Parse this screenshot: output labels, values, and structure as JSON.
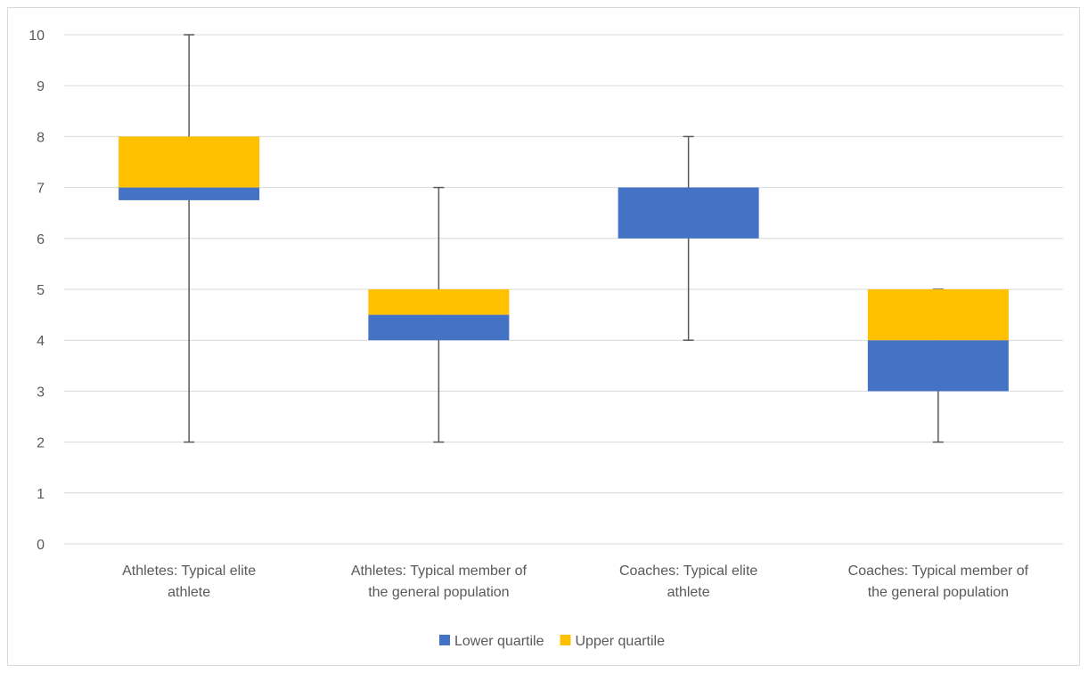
{
  "chart_data": {
    "type": "box",
    "title": "",
    "xlabel": "",
    "ylabel": "",
    "ylim": [
      0,
      10
    ],
    "yticks": [
      0,
      1,
      2,
      3,
      4,
      5,
      6,
      7,
      8,
      9,
      10
    ],
    "grid": true,
    "legend_position": "bottom",
    "categories": [
      [
        "Athletes: Typical elite",
        "athlete"
      ],
      [
        "Athletes: Typical member of",
        "the general population"
      ],
      [
        "Coaches: Typical elite",
        "athlete"
      ],
      [
        "Coaches: Typical member of",
        "the general population"
      ]
    ],
    "boxes": [
      {
        "min": 2,
        "q1": 6.75,
        "median": 7,
        "q3": 8,
        "max": 10
      },
      {
        "min": 2,
        "q1": 4,
        "median": 4.5,
        "q3": 5,
        "max": 7
      },
      {
        "min": 4,
        "q1": 6,
        "median": 7,
        "q3": 7,
        "max": 8
      },
      {
        "min": 2,
        "q1": 3,
        "median": 4,
        "q3": 5,
        "max": 5
      }
    ],
    "series": [
      {
        "name": "Lower quartile",
        "color": "#4472c4"
      },
      {
        "name": "Upper quartile",
        "color": "#ffc000"
      }
    ]
  }
}
